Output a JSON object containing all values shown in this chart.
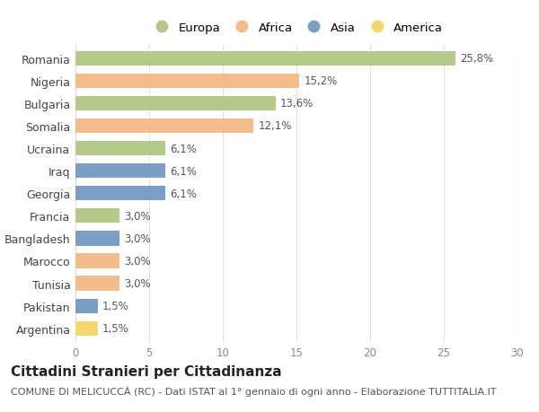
{
  "countries": [
    "Romania",
    "Nigeria",
    "Bulgaria",
    "Somalia",
    "Ucraina",
    "Iraq",
    "Georgia",
    "Francia",
    "Bangladesh",
    "Marocco",
    "Tunisia",
    "Pakistan",
    "Argentina"
  ],
  "values": [
    25.8,
    15.2,
    13.6,
    12.1,
    6.1,
    6.1,
    6.1,
    3.0,
    3.0,
    3.0,
    3.0,
    1.5,
    1.5
  ],
  "labels": [
    "25,8%",
    "15,2%",
    "13,6%",
    "12,1%",
    "6,1%",
    "6,1%",
    "6,1%",
    "3,0%",
    "3,0%",
    "3,0%",
    "3,0%",
    "1,5%",
    "1,5%"
  ],
  "continents": [
    "Europa",
    "Africa",
    "Europa",
    "Africa",
    "Europa",
    "Asia",
    "Asia",
    "Europa",
    "Asia",
    "Africa",
    "Africa",
    "Asia",
    "America"
  ],
  "colors": {
    "Europa": "#b5c98a",
    "Africa": "#f2bc8d",
    "Asia": "#7b9ec4",
    "America": "#f5d76e"
  },
  "legend_order": [
    "Europa",
    "Africa",
    "Asia",
    "America"
  ],
  "xlim": [
    0,
    30
  ],
  "xticks": [
    0,
    5,
    10,
    15,
    20,
    25,
    30
  ],
  "title": "Cittadini Stranieri per Cittadinanza",
  "subtitle": "COMUNE DI MELICUCCÀ (RC) - Dati ISTAT al 1° gennaio di ogni anno - Elaborazione TUTTITALIA.IT",
  "background_color": "#ffffff",
  "bar_height": 0.65,
  "grid_color": "#e0e0e0",
  "label_fontsize": 8.5,
  "ytick_fontsize": 9,
  "xtick_fontsize": 8.5,
  "title_fontsize": 11,
  "subtitle_fontsize": 8
}
